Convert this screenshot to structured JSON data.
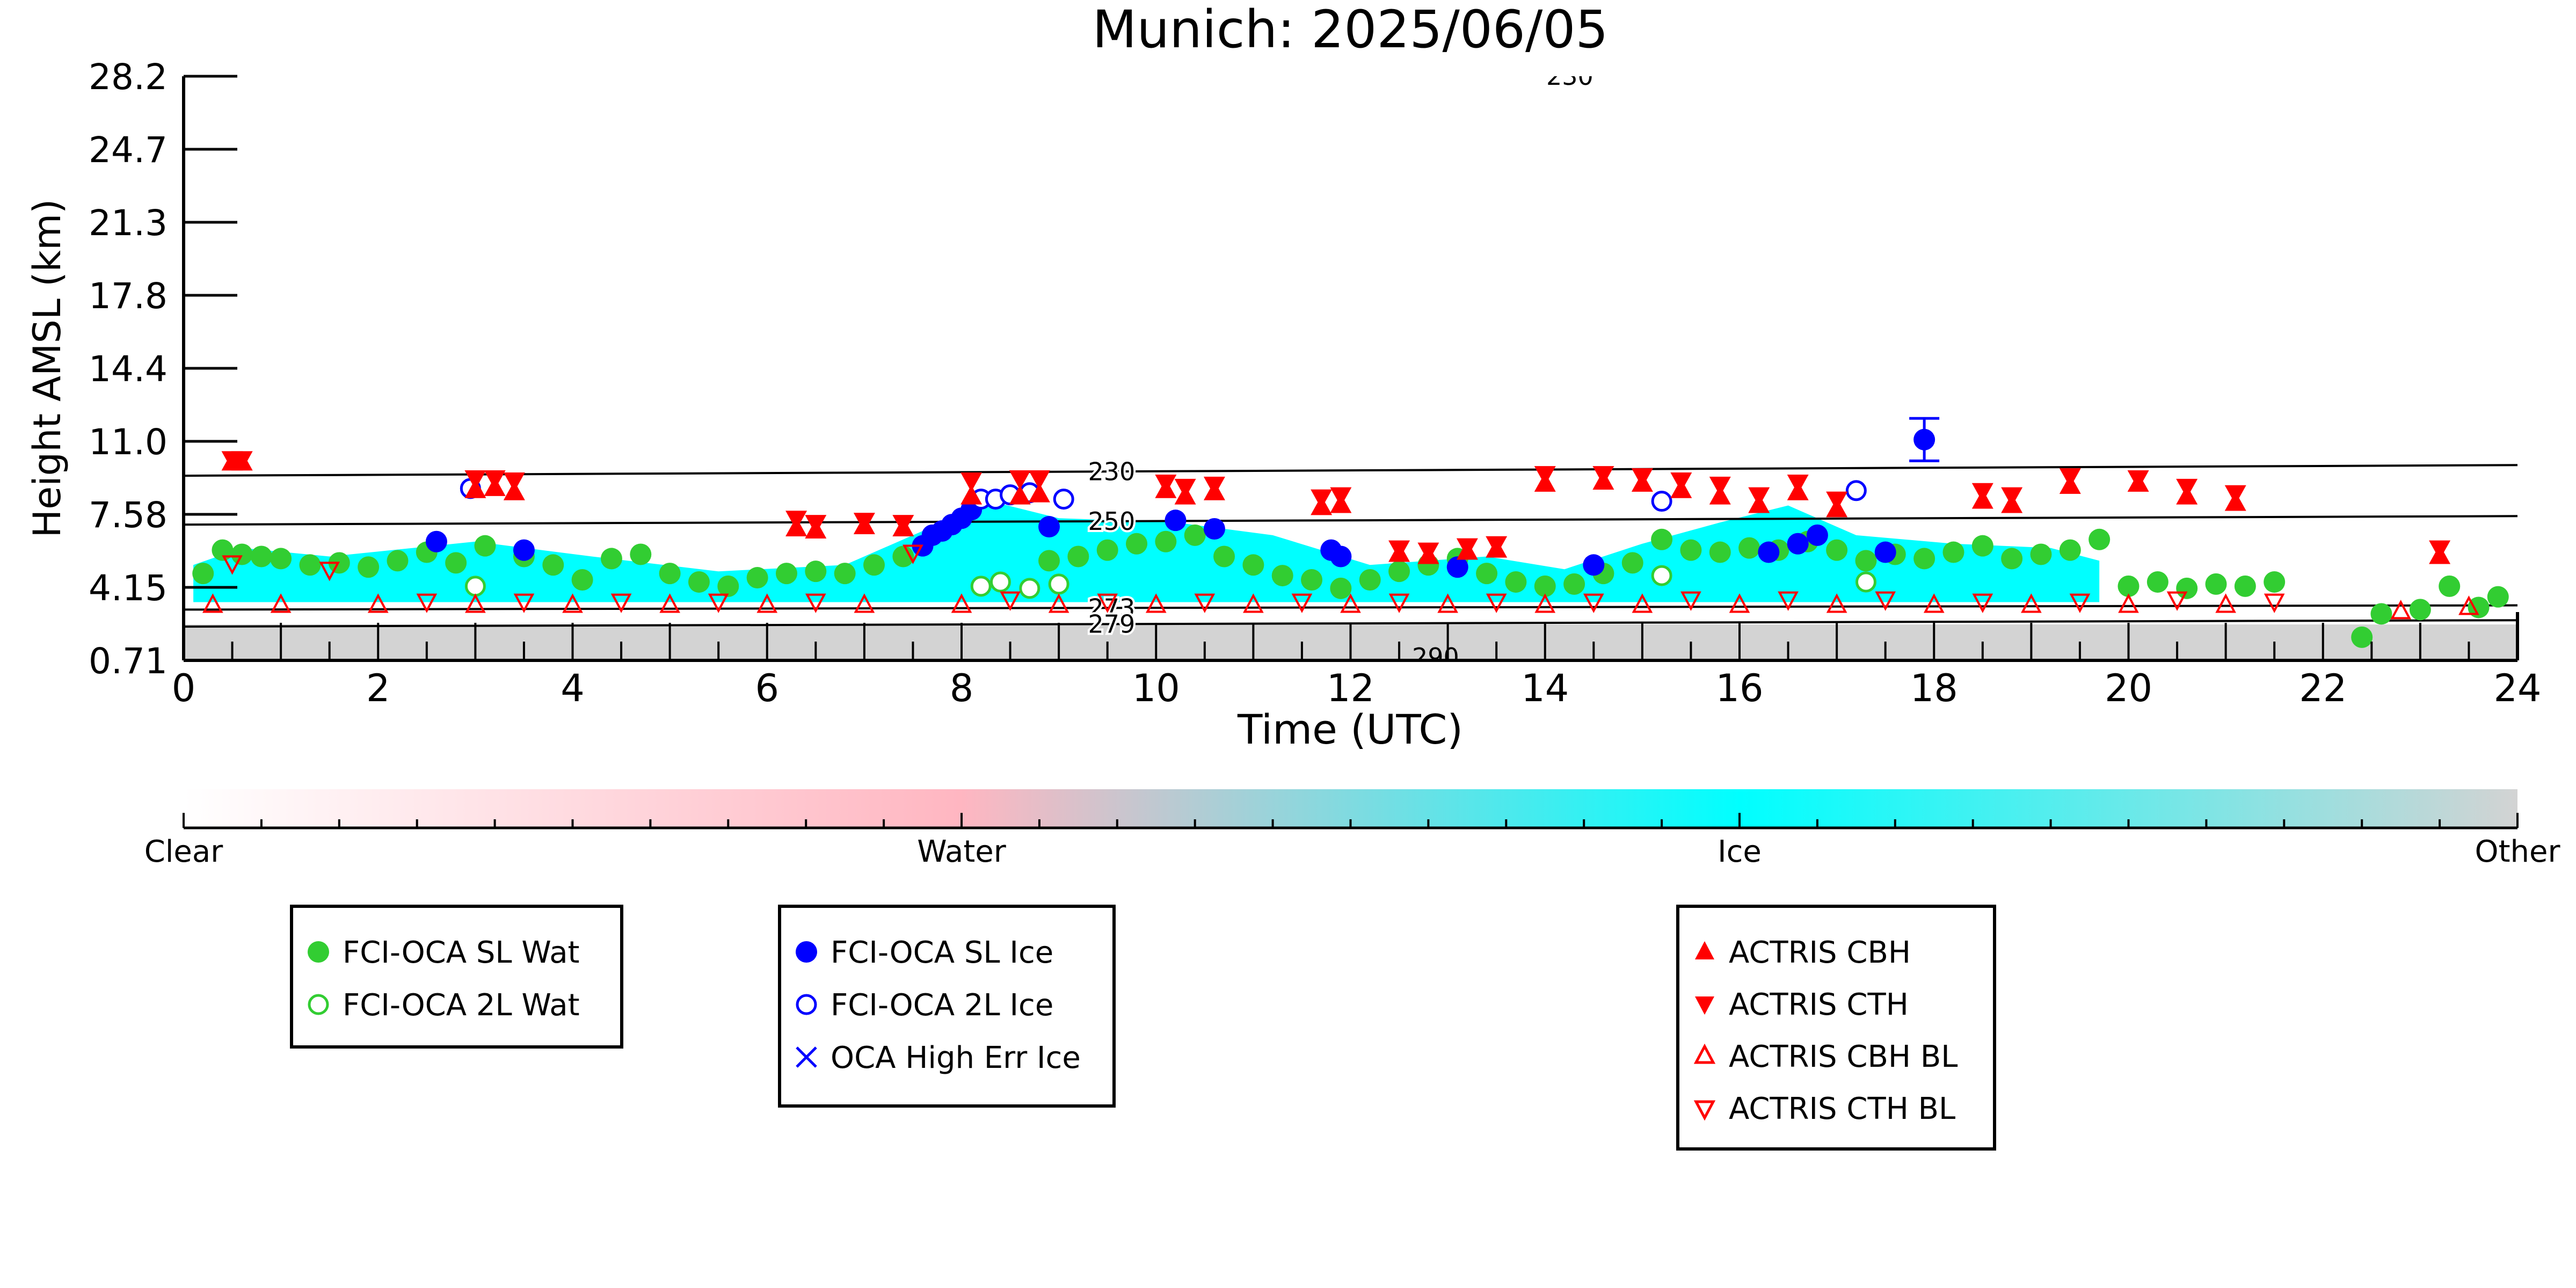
{
  "chart_data": {
    "type": "scatter",
    "title": "Munich: 2025/06/05",
    "xlabel": "Time (UTC)",
    "ylabel": "Height AMSL (km)",
    "xlim": [
      0,
      24
    ],
    "ylim_labels": [
      "0.71",
      "4.15",
      "7.58",
      "11.0",
      "14.4",
      "17.8",
      "21.3",
      "24.7",
      "28.2"
    ],
    "xticks": [
      "0",
      "2",
      "4",
      "6",
      "8",
      "10",
      "12",
      "14",
      "16",
      "18",
      "20",
      "22",
      "24"
    ],
    "grid": false,
    "colorbar": {
      "labels": [
        "Clear",
        "Water",
        "Ice",
        "Other"
      ],
      "colors": [
        "#ffffff",
        "#ffb6c1",
        "#00ffff",
        "#d3d3d3"
      ]
    },
    "isotherms": [
      {
        "label": "230",
        "x": [
          0,
          24
        ],
        "y": [
          9.4,
          9.9
        ]
      },
      {
        "label": "250",
        "x": [
          0,
          24
        ],
        "y": [
          7.1,
          7.5
        ]
      },
      {
        "label": "273",
        "x": [
          0,
          24
        ],
        "y": [
          3.1,
          3.3
        ]
      },
      {
        "label": "279",
        "x": [
          0,
          24
        ],
        "y": [
          2.3,
          2.6
        ]
      }
    ],
    "partial_labels": [
      "230",
      "290"
    ],
    "background_classes": {
      "ice_region": {
        "x": [
          0.1,
          19.7
        ],
        "y": [
          3.4,
          6.8
        ],
        "color": "#00ffff"
      },
      "other_band": {
        "x": [
          0,
          24
        ],
        "y": [
          0.71,
          2.4
        ],
        "color": "#d3d3d3"
      }
    },
    "series": [
      {
        "name": "FCI-OCA SL Wat",
        "marker": "filled-circle",
        "color": "#32cd32",
        "x": [
          0.2,
          0.4,
          0.6,
          0.8,
          1.0,
          1.3,
          1.6,
          1.9,
          2.2,
          2.5,
          2.8,
          3.1,
          3.5,
          3.8,
          4.1,
          4.4,
          4.7,
          5.0,
          5.3,
          5.6,
          5.9,
          6.2,
          6.5,
          6.8,
          7.1,
          7.4,
          8.9,
          9.2,
          9.5,
          9.8,
          10.1,
          10.4,
          10.7,
          11.0,
          11.3,
          11.6,
          11.9,
          12.2,
          12.5,
          12.8,
          13.1,
          13.4,
          13.7,
          14.0,
          14.3,
          14.6,
          14.9,
          15.2,
          15.5,
          15.8,
          16.1,
          16.4,
          16.7,
          17.0,
          17.3,
          17.6,
          17.9,
          18.2,
          18.5,
          18.8,
          19.1,
          19.4,
          19.7,
          20.0,
          20.3,
          20.6,
          20.9,
          21.2,
          21.5,
          22.4,
          22.6,
          23.0,
          23.3,
          23.6,
          23.8
        ],
        "y": [
          4.8,
          5.9,
          5.7,
          5.6,
          5.5,
          5.2,
          5.3,
          5.1,
          5.4,
          5.8,
          5.3,
          6.1,
          5.6,
          5.2,
          4.5,
          5.5,
          5.7,
          4.8,
          4.4,
          4.2,
          4.6,
          4.8,
          4.9,
          4.8,
          5.2,
          5.6,
          5.4,
          5.6,
          5.9,
          6.2,
          6.3,
          6.6,
          5.6,
          5.2,
          4.7,
          4.5,
          4.1,
          4.5,
          4.9,
          5.2,
          5.5,
          4.8,
          4.4,
          4.2,
          4.3,
          4.8,
          5.3,
          6.4,
          5.9,
          5.8,
          6.0,
          5.9,
          6.3,
          5.9,
          5.4,
          5.7,
          5.5,
          5.8,
          6.1,
          5.5,
          5.7,
          5.9,
          6.4,
          4.2,
          4.4,
          4.1,
          4.3,
          4.2,
          4.4,
          1.8,
          2.9,
          3.1,
          4.2,
          3.2,
          3.7
        ]
      },
      {
        "name": "FCI-OCA 2L Wat",
        "marker": "open-circle",
        "color": "#32cd32",
        "x": [
          3.0,
          8.2,
          8.4,
          8.7,
          9.0,
          15.2,
          17.3
        ],
        "y": [
          4.2,
          4.2,
          4.4,
          4.1,
          4.3,
          4.7,
          4.4
        ]
      },
      {
        "name": "FCI-OCA SL Ice",
        "marker": "filled-circle",
        "color": "#0000ff",
        "x": [
          2.6,
          3.5,
          7.6,
          7.7,
          7.8,
          7.9,
          8.0,
          8.1,
          8.9,
          10.2,
          10.6,
          11.8,
          11.9,
          13.1,
          14.5,
          16.3,
          16.6,
          16.8,
          17.5,
          17.9
        ],
        "y": [
          6.3,
          5.9,
          6.1,
          6.6,
          6.8,
          7.1,
          7.4,
          7.8,
          7.0,
          7.3,
          6.9,
          5.9,
          5.6,
          5.1,
          5.2,
          5.8,
          6.2,
          6.6,
          5.8,
          11.1
        ]
      },
      {
        "name": "FCI-OCA 2L Ice",
        "marker": "open-circle",
        "color": "#0000ff",
        "x": [
          2.95,
          8.2,
          8.35,
          8.5,
          8.7,
          9.05,
          15.2,
          17.2
        ],
        "y": [
          8.8,
          8.3,
          8.3,
          8.5,
          8.6,
          8.3,
          8.2,
          8.7
        ]
      },
      {
        "name": "OCA High Err Ice",
        "marker": "x",
        "color": "#0000ff",
        "x": [],
        "y": []
      },
      {
        "name": "ACTRIS CBH",
        "marker": "filled-triangle-up",
        "color": "#ff0000",
        "x": [
          0.5,
          0.6,
          3.0,
          3.2,
          3.4,
          6.3,
          6.5,
          7.0,
          7.4,
          8.1,
          8.6,
          8.8,
          10.1,
          10.3,
          10.6,
          11.7,
          11.9,
          12.5,
          12.8,
          13.2,
          13.5,
          14.0,
          14.6,
          15.0,
          15.4,
          15.8,
          16.2,
          16.6,
          17.0,
          18.5,
          18.8,
          19.4,
          20.1,
          20.6,
          21.1,
          23.2
        ],
        "y": [
          10.0,
          10.0,
          8.7,
          8.8,
          8.6,
          6.9,
          6.8,
          7.0,
          6.9,
          8.4,
          8.4,
          8.5,
          8.7,
          8.4,
          8.6,
          7.9,
          8.0,
          5.7,
          5.6,
          5.8,
          5.9,
          9.0,
          9.1,
          9.0,
          8.7,
          8.4,
          8.0,
          8.6,
          7.8,
          8.2,
          8.0,
          8.9,
          9.0,
          8.4,
          8.1,
          5.6
        ]
      },
      {
        "name": "ACTRIS CTH",
        "marker": "filled-triangle-down",
        "color": "#ff0000",
        "x": [
          0.5,
          0.6,
          3.0,
          3.2,
          3.4,
          6.3,
          6.5,
          7.0,
          7.4,
          8.1,
          8.6,
          8.8,
          10.1,
          10.3,
          10.6,
          11.7,
          11.9,
          12.5,
          12.8,
          13.2,
          13.5,
          14.0,
          14.6,
          15.0,
          15.4,
          15.8,
          16.2,
          16.6,
          17.0,
          18.5,
          18.8,
          19.4,
          20.1,
          20.6,
          21.1,
          23.2
        ],
        "y": [
          10.2,
          10.2,
          9.3,
          9.3,
          9.2,
          7.4,
          7.2,
          7.3,
          7.2,
          9.2,
          9.3,
          9.3,
          9.1,
          8.9,
          9.0,
          8.4,
          8.5,
          6.0,
          5.9,
          6.1,
          6.2,
          9.5,
          9.5,
          9.4,
          9.2,
          9.0,
          8.5,
          9.1,
          8.3,
          8.7,
          8.5,
          9.4,
          9.3,
          8.9,
          8.6,
          6.0
        ]
      },
      {
        "name": "ACTRIS CBH BL",
        "marker": "open-triangle-up",
        "color": "#ff0000",
        "x": [
          0.3,
          1.0,
          2.0,
          3.0,
          4.0,
          5.0,
          6.0,
          7.0,
          8.0,
          9.0,
          10.0,
          11.0,
          12.0,
          13.0,
          14.0,
          15.0,
          16.0,
          17.0,
          18.0,
          19.0,
          20.0,
          21.0,
          22.8,
          23.5
        ],
        "y": [
          3.3,
          3.3,
          3.3,
          3.3,
          3.3,
          3.3,
          3.3,
          3.3,
          3.3,
          3.3,
          3.3,
          3.3,
          3.3,
          3.3,
          3.3,
          3.3,
          3.3,
          3.3,
          3.3,
          3.3,
          3.3,
          3.3,
          3.0,
          3.2
        ]
      },
      {
        "name": "ACTRIS CTH BL",
        "marker": "open-triangle-down",
        "color": "#ff0000",
        "x": [
          0.5,
          1.5,
          2.5,
          3.5,
          4.5,
          5.5,
          6.5,
          7.5,
          8.5,
          9.5,
          10.5,
          11.5,
          12.5,
          13.5,
          14.5,
          15.5,
          16.5,
          17.5,
          18.5,
          19.5,
          20.5,
          21.5
        ],
        "y": [
          5.3,
          5.0,
          3.5,
          3.5,
          3.5,
          3.5,
          3.5,
          5.8,
          3.6,
          3.5,
          3.5,
          3.5,
          3.5,
          3.5,
          3.5,
          3.6,
          3.6,
          3.6,
          3.5,
          3.5,
          3.6,
          3.5
        ]
      }
    ]
  }
}
